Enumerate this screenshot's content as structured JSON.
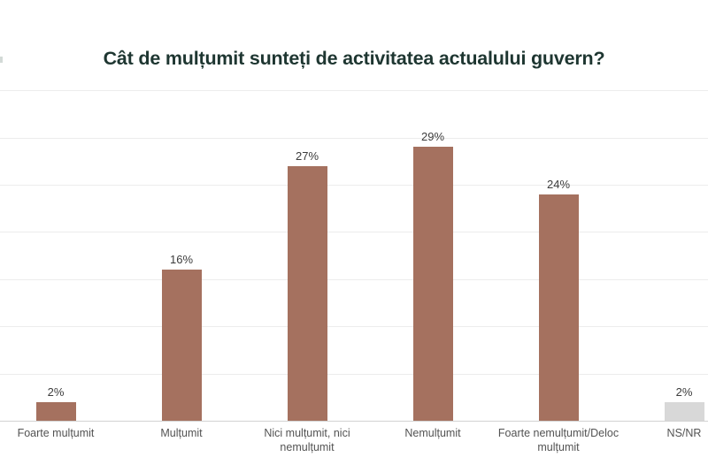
{
  "page": {
    "background": "#ffffff"
  },
  "chart_data": {
    "type": "bar",
    "title": "Cât de mulțumit sunteți de activitatea actualului guvern?",
    "title_color": "#1e3631",
    "categories": [
      "Foarte mulțumit",
      "Mulțumit",
      "Nici mulțumit, nici nemulțumit",
      "Nemulțumit",
      "Foarte nemulțumit/Deloc mulțumit",
      "NS/NR"
    ],
    "values": [
      2,
      16,
      27,
      29,
      24,
      2
    ],
    "value_labels": [
      "2%",
      "16%",
      "27%",
      "29%",
      "24%",
      "2%"
    ],
    "bar_colors": [
      "#a5715f",
      "#a5715f",
      "#a5715f",
      "#a5715f",
      "#a5715f",
      "#d8d8d8"
    ],
    "xlabel": "",
    "ylabel": "",
    "ylim": [
      0,
      35
    ],
    "gridline_step": 5,
    "grid": true,
    "y_tick_labels_shown": false,
    "legend": "none"
  }
}
